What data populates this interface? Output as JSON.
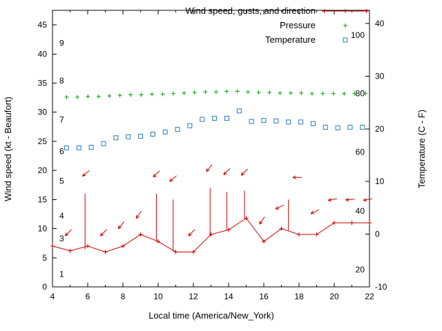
{
  "chart_data": {
    "type": "line",
    "title": "",
    "legend": [
      {
        "label": "Wind speed, gusts, and direction",
        "series": "wind"
      },
      {
        "label": "Pressure",
        "series": "pressure"
      },
      {
        "label": "Temperature",
        "series": "temperature"
      }
    ],
    "x_axis": {
      "title": "Local time (America/New_York)",
      "min": 4,
      "max": 22,
      "major_ticks": [
        4,
        6,
        8,
        10,
        12,
        14,
        16,
        18,
        20,
        22
      ],
      "minor_ticks": [
        5,
        7,
        9,
        11,
        13,
        15,
        17,
        19,
        21
      ]
    },
    "left_axis": {
      "title": "Wind speed (kt - Beaufort)",
      "min": 0,
      "max": 47.5,
      "ticks": [
        0,
        5,
        10,
        15,
        20,
        25,
        30,
        35,
        40,
        45
      ],
      "beaufort_labels": [
        {
          "label": "1",
          "kt": 2.2
        },
        {
          "label": "3",
          "kt": 8.3
        },
        {
          "label": "4",
          "kt": 12.2
        },
        {
          "label": "5",
          "kt": 18.2
        },
        {
          "label": "6",
          "kt": 23.3
        },
        {
          "label": "7",
          "kt": 28.7
        },
        {
          "label": "8",
          "kt": 35.4
        },
        {
          "label": "9",
          "kt": 41.9
        }
      ]
    },
    "right_axis": {
      "title": "Temperature (C - F)",
      "min": -10,
      "max": 42.5,
      "ticks": [
        -10,
        0,
        10,
        20,
        30,
        40
      ],
      "fahrenheit_labels": [
        {
          "label": "20",
          "celsius": -6.7
        },
        {
          "label": "40",
          "celsius": 4.4
        },
        {
          "label": "60",
          "celsius": 15.6
        },
        {
          "label": "80",
          "celsius": 26.7
        },
        {
          "label": "100",
          "celsius": 37.8
        }
      ]
    },
    "series": [
      {
        "name": "wind_speed_gusts_direction",
        "style": "line_with_plus_markers",
        "color": "#cc0000",
        "hours": [
          4,
          5,
          6,
          7,
          8,
          9,
          10,
          11,
          12,
          13,
          14,
          15,
          16,
          17,
          18,
          19,
          20,
          21,
          22
        ],
        "speed_kt": [
          7,
          6.2,
          7,
          6,
          7,
          9,
          7.8,
          6,
          6,
          9,
          9.8,
          11.8,
          7.8,
          10,
          9,
          9,
          11,
          11,
          11
        ],
        "gusts": [
          {
            "hour": 5.85,
            "from_kt": 6.4,
            "to_kt": 16
          },
          {
            "hour": 9.9,
            "from_kt": 7.8,
            "to_kt": 16
          },
          {
            "hour": 10.85,
            "from_kt": 6.1,
            "to_kt": 15
          },
          {
            "hour": 12.95,
            "from_kt": 9.0,
            "to_kt": 17
          },
          {
            "hour": 13.9,
            "from_kt": 9.9,
            "to_kt": 16.3
          },
          {
            "hour": 14.9,
            "from_kt": 11.8,
            "to_kt": 16.5
          },
          {
            "hour": 17.4,
            "from_kt": 9.7,
            "to_kt": 15
          }
        ],
        "direction_arrows": [
          {
            "hour": 4.9,
            "kt": 9.3,
            "angle_deg": 225
          },
          {
            "hour": 5.9,
            "kt": 19.5,
            "angle_deg": 220
          },
          {
            "hour": 6.9,
            "kt": 9.3,
            "angle_deg": 225
          },
          {
            "hour": 7.9,
            "kt": 10.6,
            "angle_deg": 230
          },
          {
            "hour": 8.9,
            "kt": 12.4,
            "angle_deg": 235
          },
          {
            "hour": 9.9,
            "kt": 19.4,
            "angle_deg": 225
          },
          {
            "hour": 10.85,
            "kt": 18.6,
            "angle_deg": 220
          },
          {
            "hour": 11.9,
            "kt": 9.3,
            "angle_deg": 225
          },
          {
            "hour": 12.9,
            "kt": 20.4,
            "angle_deg": 230
          },
          {
            "hour": 13.9,
            "kt": 19.8,
            "angle_deg": 225
          },
          {
            "hour": 14.9,
            "kt": 19.7,
            "angle_deg": 225
          },
          {
            "hour": 15.9,
            "kt": 11.4,
            "angle_deg": 235
          },
          {
            "hour": 16.9,
            "kt": 13.7,
            "angle_deg": 205
          },
          {
            "hour": 17.9,
            "kt": 18.8,
            "angle_deg": 180
          },
          {
            "hour": 18.9,
            "kt": 12.9,
            "angle_deg": 205
          },
          {
            "hour": 19.9,
            "kt": 15.0,
            "angle_deg": 190
          },
          {
            "hour": 20.9,
            "kt": 15.0,
            "angle_deg": 185
          },
          {
            "hour": 21.9,
            "kt": 15.0,
            "angle_deg": 190
          }
        ]
      },
      {
        "name": "pressure",
        "style": "plus_points",
        "color": "#00a000",
        "hours": [
          4.8,
          5.41,
          6.01,
          6.62,
          7.23,
          7.83,
          8.44,
          9.04,
          9.65,
          10.26,
          10.86,
          11.47,
          12.07,
          12.68,
          13.29,
          13.89,
          14.5,
          15.1,
          15.71,
          16.32,
          16.92,
          17.53,
          18.13,
          18.74,
          19.35,
          19.95,
          20.56,
          21.16,
          21.77
        ],
        "value_left_axis_units": [
          32.6,
          32.6,
          32.7,
          32.7,
          32.8,
          32.9,
          33.0,
          33.0,
          33.1,
          33.1,
          33.2,
          33.3,
          33.4,
          33.5,
          33.5,
          33.6,
          33.6,
          33.5,
          33.4,
          33.4,
          33.3,
          33.3,
          33.3,
          33.2,
          33.2,
          33.2,
          33.2,
          33.2,
          33.2
        ]
      },
      {
        "name": "temperature",
        "style": "open_square_points",
        "color": "#2878be",
        "hours": [
          4.8,
          5.5,
          6.2,
          6.9,
          7.6,
          8.3,
          9,
          9.7,
          10.4,
          11.1,
          11.8,
          12.5,
          13.2,
          13.9,
          14.6,
          15.3,
          16,
          16.7,
          17.4,
          18.1,
          18.8,
          19.5,
          20.2,
          20.9,
          21.6
        ],
        "celsius": [
          16.4,
          16.4,
          16.5,
          17.2,
          18.3,
          18.5,
          18.6,
          19,
          19.4,
          19.9,
          20.6,
          21.8,
          22,
          22,
          23.4,
          21.4,
          21.6,
          21.5,
          21.3,
          21.3,
          21,
          20.3,
          20.2,
          20.3,
          20.3
        ]
      }
    ]
  }
}
